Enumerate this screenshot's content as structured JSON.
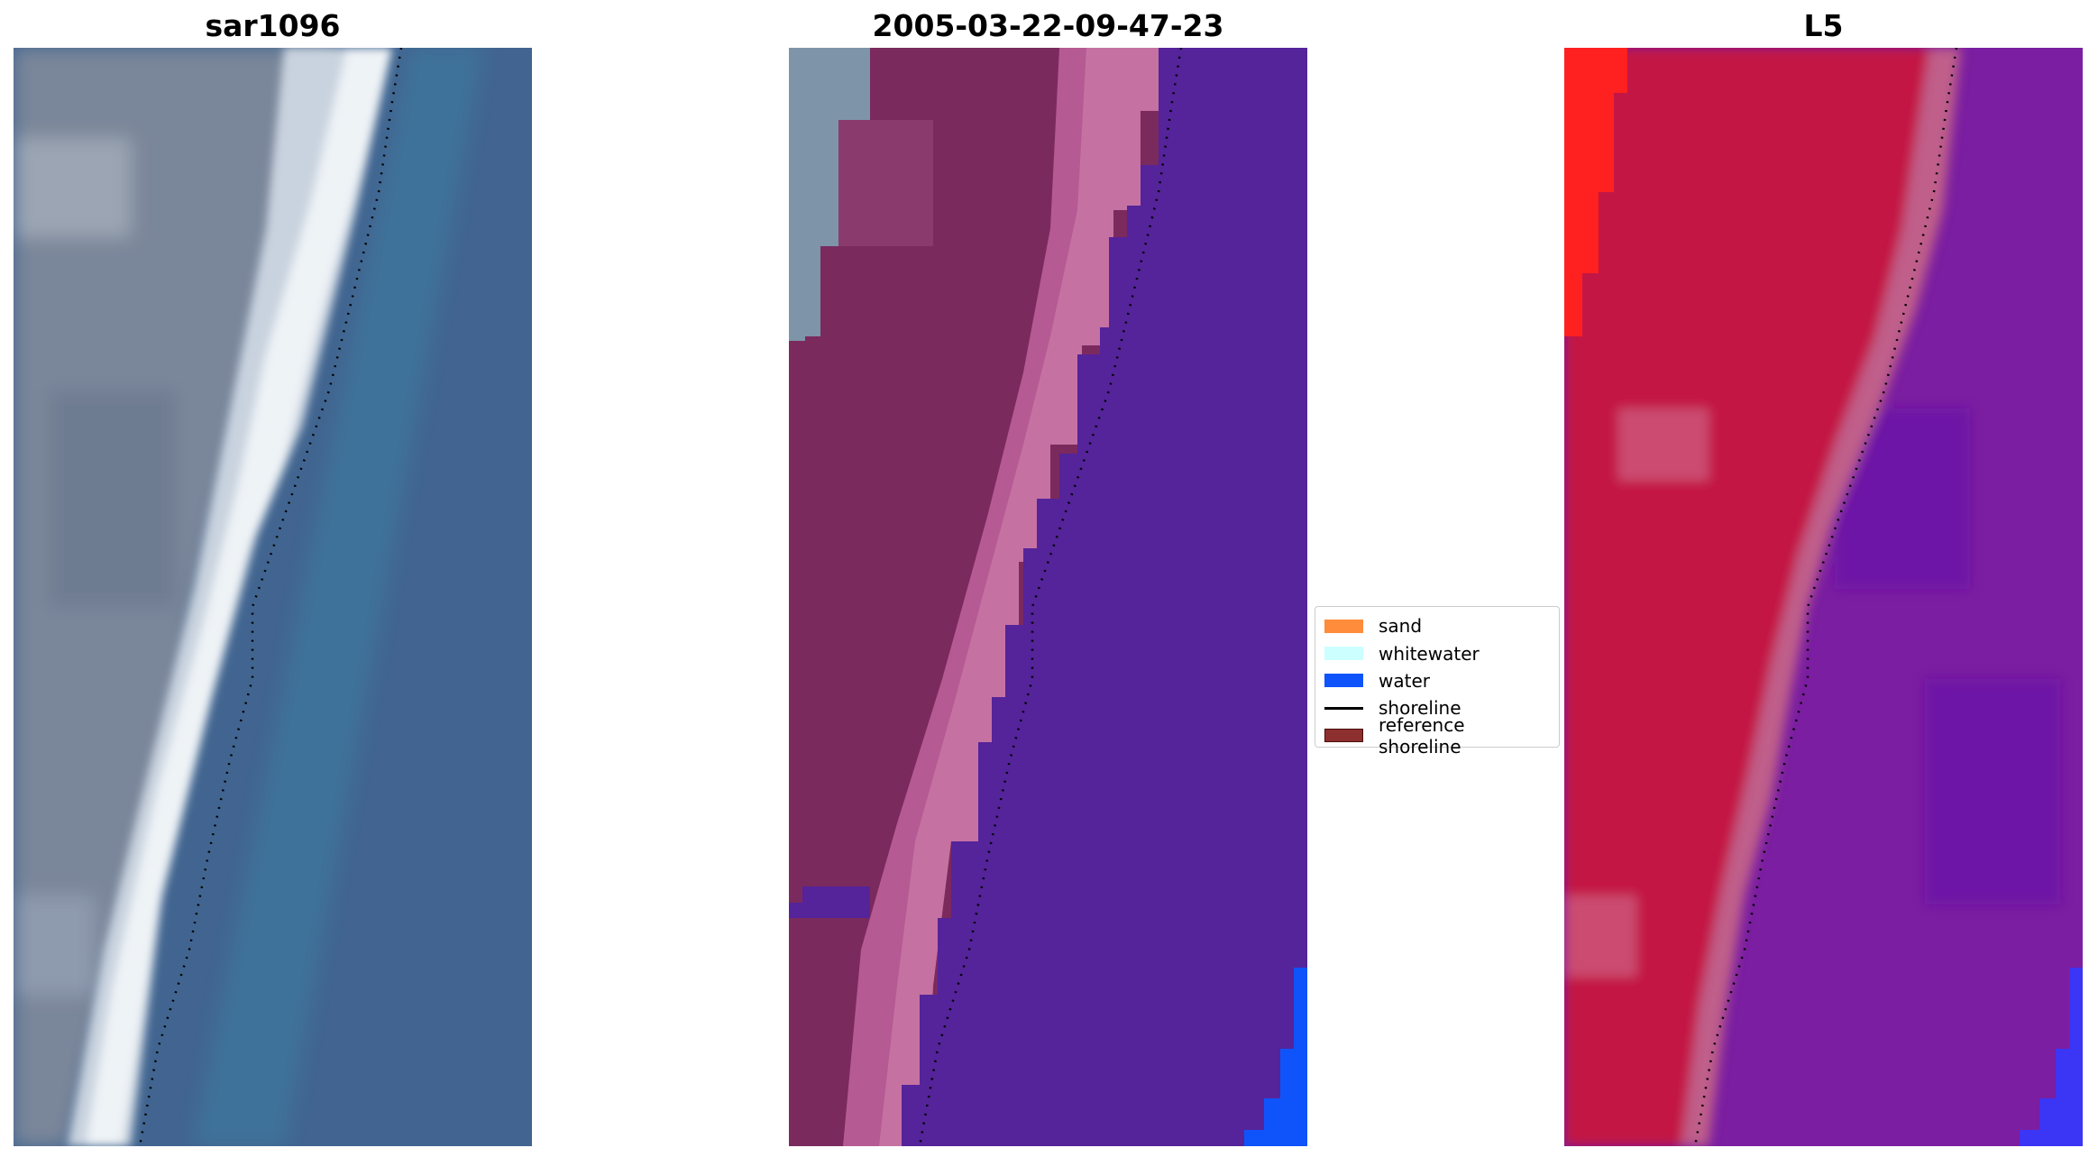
{
  "panels": [
    {
      "title": "sar1096",
      "kind": "satellite-rgb",
      "colors": {
        "land": "#7a869a",
        "land_dark": "#6a778f",
        "land_light": "#9ba5b4",
        "sand_bright": "#eef3f6",
        "sand_mid": "#c9d3df",
        "water": "#416590",
        "water_teal": "#3e7ca0"
      }
    },
    {
      "title": "2005-03-22-09-47-23",
      "kind": "classification-overlay",
      "colors": {
        "land": "#7b2a5e",
        "land_light": "#8b3a6e",
        "sand_band": "#b55a92",
        "sand_band_light": "#c877a6",
        "unclassified": "#7e94a8",
        "water": "#55239a",
        "water_blue": "#0f54fb"
      }
    },
    {
      "title": "L5",
      "kind": "index-image",
      "colors": {
        "land": "#c31845",
        "land_bright": "#ff2020",
        "land_pale": "#cd5a7c",
        "sand_band": "#bf5f8a",
        "water": "#7b1ea1",
        "water_dark": "#6911a8",
        "water_blue": "#3b35f5"
      }
    }
  ],
  "legend": {
    "items": [
      {
        "label": "sand",
        "color": "#ff8c3a",
        "type": "patch"
      },
      {
        "label": "whitewater",
        "color": "#ccffff",
        "type": "patch"
      },
      {
        "label": "water",
        "color": "#0f54fb",
        "type": "patch"
      },
      {
        "label": "shoreline",
        "color": "#000000",
        "type": "line"
      },
      {
        "label": "reference shoreline",
        "color": "#8e2f2f",
        "type": "patch-outlined"
      }
    ]
  },
  "shoreline": {
    "color": "#000000",
    "style": "dotted"
  }
}
